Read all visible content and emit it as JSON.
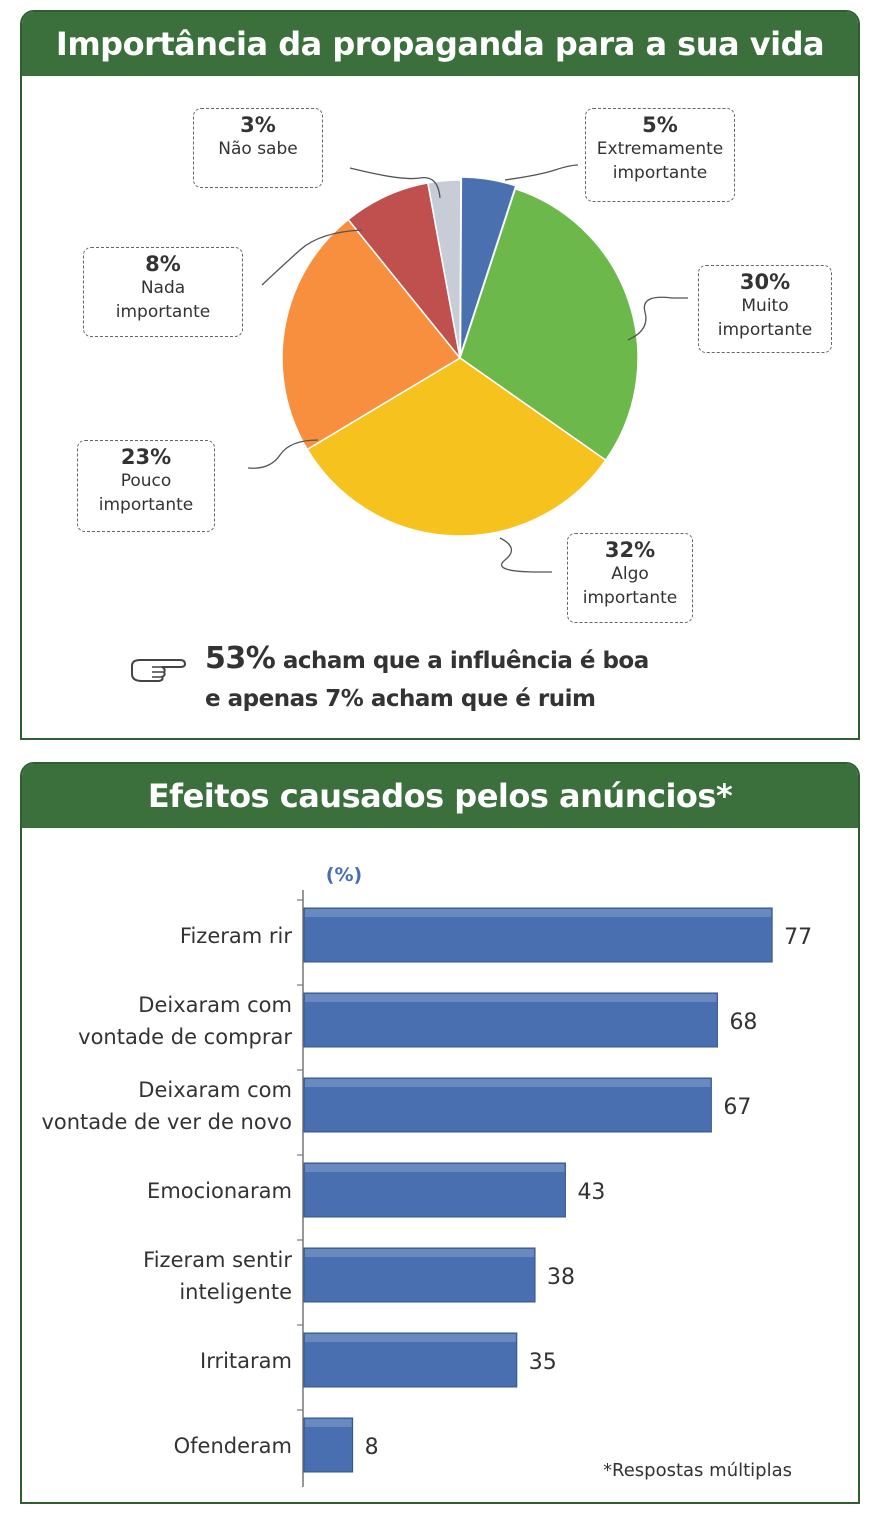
{
  "chart_data": [
    {
      "type": "pie",
      "title": "Importância da propaganda para a sua vida",
      "slices": [
        {
          "pct": "5%",
          "label": "Extremamente\nimportante",
          "value": 5,
          "color": "#4a70b0"
        },
        {
          "pct": "30%",
          "label": "Muito\nimportante",
          "value": 30,
          "color": "#6cb84b"
        },
        {
          "pct": "32%",
          "label": "Algo\nimportante",
          "value": 32,
          "color": "#f5c21e"
        },
        {
          "pct": "23%",
          "label": "Pouco\nimportante",
          "value": 23,
          "color": "#f78f3e"
        },
        {
          "pct": "8%",
          "label": "Nada\nimportante",
          "value": 8,
          "color": "#c0504d"
        },
        {
          "pct": "3%",
          "label": "Não sabe",
          "value": 3,
          "color": "#c8ccd6"
        }
      ],
      "note": {
        "highlight": "53%",
        "line1_rest": " acham que a influência é boa",
        "line2": "e apenas 7% acham que é ruim"
      }
    },
    {
      "type": "bar",
      "orientation": "horizontal",
      "title": "Efeitos causados pelos anúncios*",
      "unit_label": "(%)",
      "categories": [
        "Fizeram rir",
        "Deixaram com\nvontade de comprar",
        "Deixaram com\nvontade de ver de novo",
        "Emocionaram",
        "Fizeram sentir\ninteligente",
        "Irritaram",
        "Ofenderam"
      ],
      "values": [
        77,
        68,
        67,
        43,
        38,
        35,
        8
      ],
      "bar_color": "#4a6fb0",
      "footnote": "*Respostas múltiplas"
    }
  ]
}
